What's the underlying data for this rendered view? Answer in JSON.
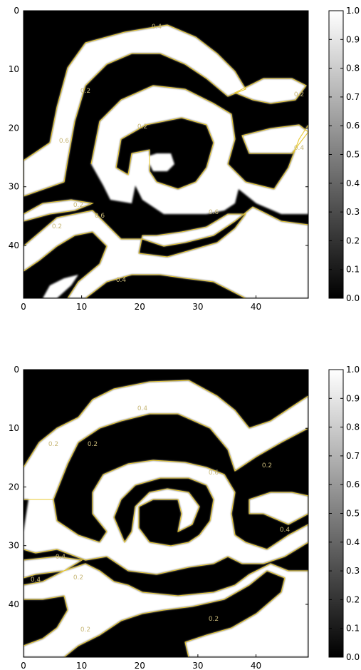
{
  "chart_data": [
    {
      "type": "heatmap",
      "title": "",
      "xlabel": "",
      "ylabel": "",
      "xlim": [
        0,
        49
      ],
      "ylim": [
        49,
        0
      ],
      "x_ticks": [
        0,
        10,
        20,
        30,
        40
      ],
      "y_ticks": [
        0,
        10,
        20,
        30,
        40
      ],
      "colorbar": {
        "range": [
          0.0,
          1.0
        ],
        "ticks": [
          "0.0",
          "0.1",
          "0.2",
          "0.3",
          "0.4",
          "0.5",
          "0.6",
          "0.7",
          "0.8",
          "0.9",
          "1.0"
        ],
        "colormap": "gray"
      },
      "contour_color": "#e8c830",
      "contour_levels": [
        0.2,
        0.4,
        0.6
      ],
      "contour_labels": [
        "0.4",
        "0.2",
        "0.6",
        "0.2",
        "0.2",
        "0.6",
        "0.4",
        "0.2",
        "0.2",
        "0.4",
        "0.6"
      ],
      "description": "spiral-shaped mask, white paths on black background"
    },
    {
      "type": "heatmap",
      "title": "",
      "xlabel": "",
      "ylabel": "",
      "xlim": [
        0,
        49
      ],
      "ylim": [
        49,
        0
      ],
      "x_ticks": [
        0,
        10,
        20,
        30,
        40
      ],
      "y_ticks": [
        0,
        10,
        20,
        30,
        40
      ],
      "colorbar": {
        "range": [
          0.0,
          1.0
        ],
        "ticks": [
          "0.0",
          "0.1",
          "0.2",
          "0.3",
          "0.4",
          "0.5",
          "0.6",
          "0.7",
          "0.8",
          "0.9",
          "1.0"
        ],
        "colormap": "gray"
      },
      "contour_color": "#e8c830",
      "contour_levels": [
        0.2,
        0.4,
        0.6
      ],
      "contour_labels": [
        "0.4",
        "0.2",
        "0.2",
        "0.4",
        "0.6",
        "0.2",
        "0.4",
        "0.2",
        "0.2",
        "0.2",
        "0.4"
      ],
      "description": "spiral-shaped mask, white paths on black background"
    }
  ]
}
